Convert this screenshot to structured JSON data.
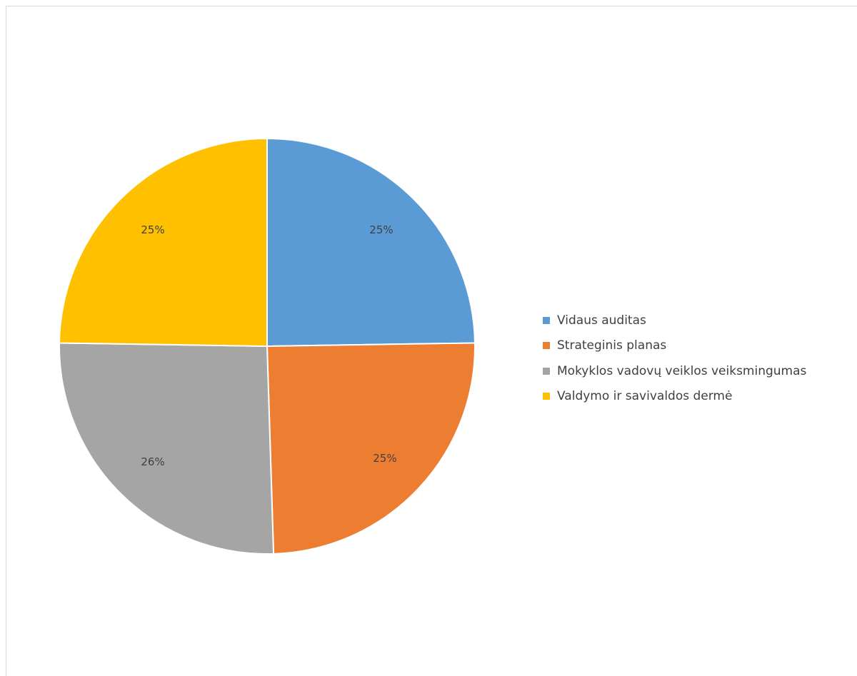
{
  "chart_data": {
    "type": "pie",
    "title": "",
    "slices": [
      {
        "label": "Vidaus auditas",
        "value": 25,
        "value_label": "25%",
        "color": "#5B9BD5"
      },
      {
        "label": "Strateginis planas",
        "value": 25,
        "value_label": "25%",
        "color": "#ED7D31"
      },
      {
        "label": "Mokyklos vadovų veiklos veiksmingumas",
        "value": 26,
        "value_label": "26%",
        "color": "#A5A5A5"
      },
      {
        "label": "Valdymo ir savivaldos dermė",
        "value": 25,
        "value_label": "25%",
        "color": "#FFC000"
      }
    ],
    "legend_position": "right"
  }
}
